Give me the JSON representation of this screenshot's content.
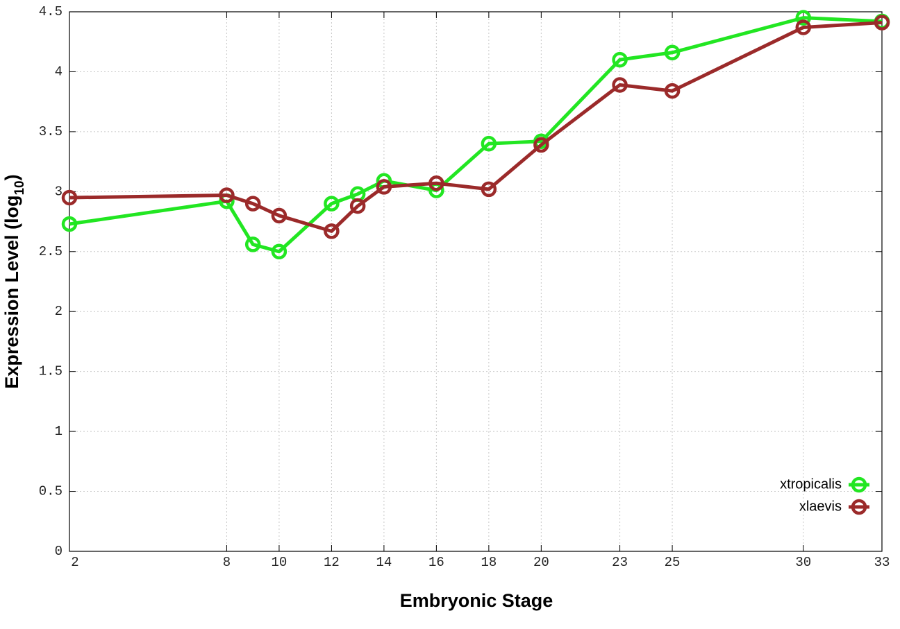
{
  "chart_data": {
    "type": "line",
    "xlabel": "Embryonic Stage",
    "ylabel_parts": [
      "Expression Level (log",
      "10",
      ")"
    ],
    "x": [
      2,
      8,
      9,
      10,
      12,
      13,
      14,
      16,
      18,
      20,
      23,
      25,
      30,
      33
    ],
    "series": [
      {
        "name": "xtropicalis",
        "color": "#22e622",
        "values": [
          2.73,
          2.92,
          2.56,
          2.5,
          2.9,
          2.98,
          3.09,
          3.01,
          3.4,
          3.42,
          4.1,
          4.16,
          4.45,
          4.42
        ]
      },
      {
        "name": "xlaevis",
        "color": "#9b2a2a",
        "values": [
          2.95,
          2.97,
          2.9,
          2.8,
          2.67,
          2.88,
          3.04,
          3.07,
          3.02,
          3.39,
          3.89,
          3.84,
          4.37,
          4.41
        ]
      }
    ],
    "xlim": [
      2,
      33
    ],
    "xticks": [
      2,
      8,
      10,
      12,
      14,
      16,
      18,
      20,
      23,
      25,
      30,
      33
    ],
    "ylim": [
      0,
      4.5
    ],
    "yticks": [
      0,
      0.5,
      1,
      1.5,
      2,
      2.5,
      3,
      3.5,
      4,
      4.5
    ],
    "grid": true,
    "legend": "lower right"
  }
}
